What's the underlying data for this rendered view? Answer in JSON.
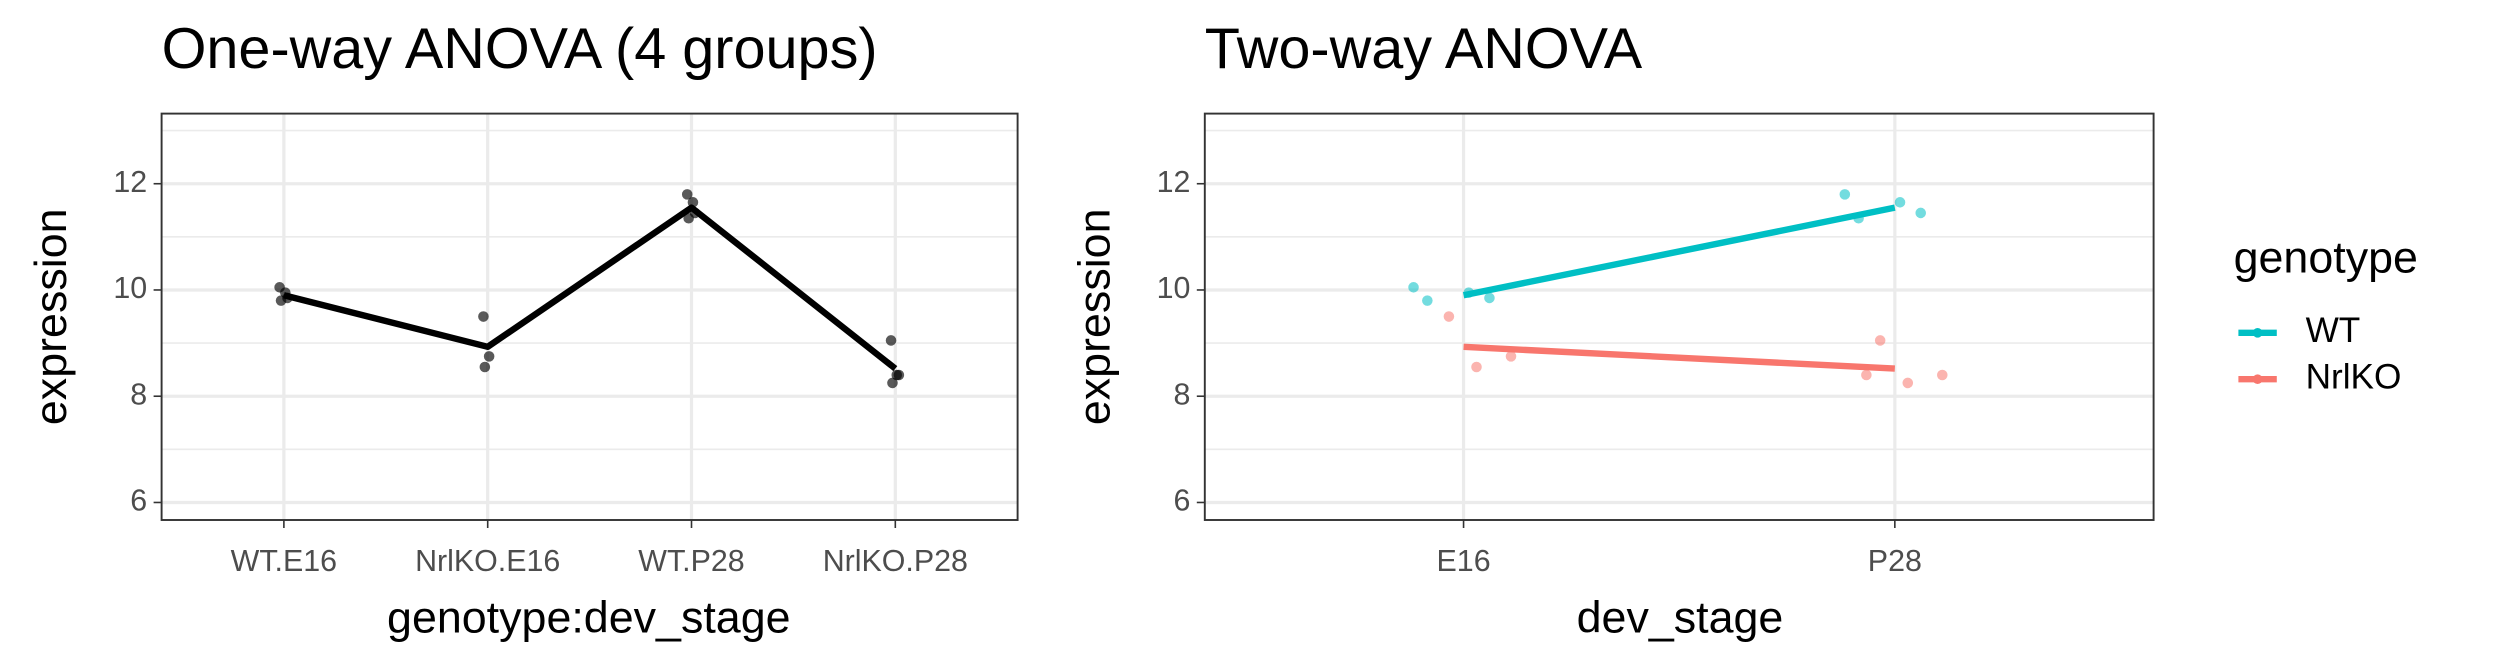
{
  "chart_data": [
    {
      "type": "line",
      "title": "One-way ANOVA (4 groups)",
      "x_label": "genotype:dev_stage",
      "y_label": "expression",
      "categories": [
        "WT.E16",
        "NrlKO.E16",
        "WT.P28",
        "NrlKO.P28"
      ],
      "series": [
        {
          "color": "#000000",
          "values": [
            9.9,
            8.93,
            11.55,
            8.52
          ],
          "point_values": [
            [
              10.05,
              9.95,
              9.8,
              9.85
            ],
            [
              9.5,
              8.75,
              8.55
            ],
            [
              11.8,
              11.65,
              11.35,
              11.45
            ],
            [
              9.05,
              8.4,
              8.25,
              8.4
            ]
          ]
        }
      ],
      "ylim": [
        5.67,
        13.32
      ],
      "yticks": [
        6,
        8,
        10,
        12
      ],
      "y_minor_ticks": [
        7,
        9,
        11,
        13
      ],
      "grid": true
    },
    {
      "type": "line",
      "title": "Two-way ANOVA",
      "x_label": "dev_stage",
      "y_label": "expression",
      "categories": [
        "E16",
        "P28"
      ],
      "legend_title": "genotype",
      "legend": "right",
      "series": [
        {
          "name": "WT",
          "color": "#00BFC4",
          "values": [
            9.9,
            11.55
          ],
          "point_values": [
            [
              10.05,
              9.95,
              9.8,
              9.85
            ],
            [
              11.8,
              11.65,
              11.35,
              11.45
            ]
          ]
        },
        {
          "name": "NrlKO",
          "color": "#F8766D",
          "values": [
            8.93,
            8.52
          ],
          "point_values": [
            [
              9.5,
              8.75,
              8.55
            ],
            [
              9.05,
              8.4,
              8.25,
              8.4
            ]
          ]
        }
      ],
      "ylim": [
        5.67,
        13.32
      ],
      "yticks": [
        6,
        8,
        10,
        12
      ],
      "y_minor_ticks": [
        7,
        9,
        11,
        13
      ],
      "grid": true
    }
  ]
}
